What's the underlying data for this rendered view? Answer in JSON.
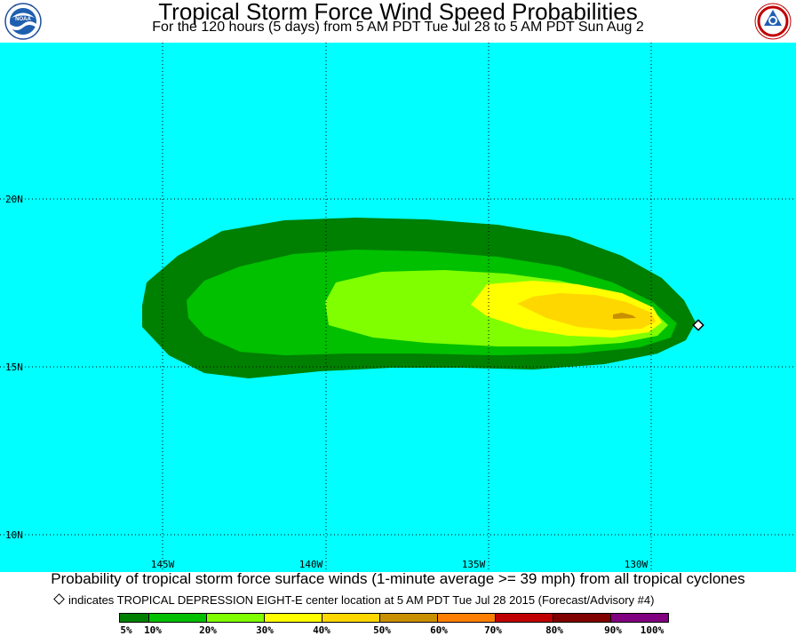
{
  "header": {
    "title": "Tropical Storm Force Wind Speed Probabilities",
    "subtitle": "For the 120 hours (5 days) from 5 AM PDT Tue Jul 28 to 5 AM PDT Sun Aug 2",
    "left_logo_text": "NOAA"
  },
  "map": {
    "ocean_color": "#00ffff",
    "lat_labels": [
      "20N",
      "15N",
      "10N"
    ],
    "lon_labels": [
      "145W",
      "140W",
      "135W",
      "130W"
    ],
    "storm_center_icon": "diamond-icon"
  },
  "footer": {
    "caption": "Probability of tropical storm force surface winds (1-minute average >= 39 mph) from all tropical cyclones",
    "center_note": "indicates TROPICAL DEPRESSION EIGHT-E center location at 5 AM PDT Tue Jul 28 2015 (Forecast/Advisory #4)"
  },
  "legend": {
    "labels": [
      "5%",
      "10%",
      "20%",
      "30%",
      "40%",
      "50%",
      "60%",
      "70%",
      "80%",
      "90%",
      "100%"
    ],
    "colors": [
      "#008000",
      "#00c000",
      "#80ff00",
      "#ffff00",
      "#ffd700",
      "#c89000",
      "#ff7f00",
      "#c00000",
      "#800000",
      "#800080"
    ]
  }
}
